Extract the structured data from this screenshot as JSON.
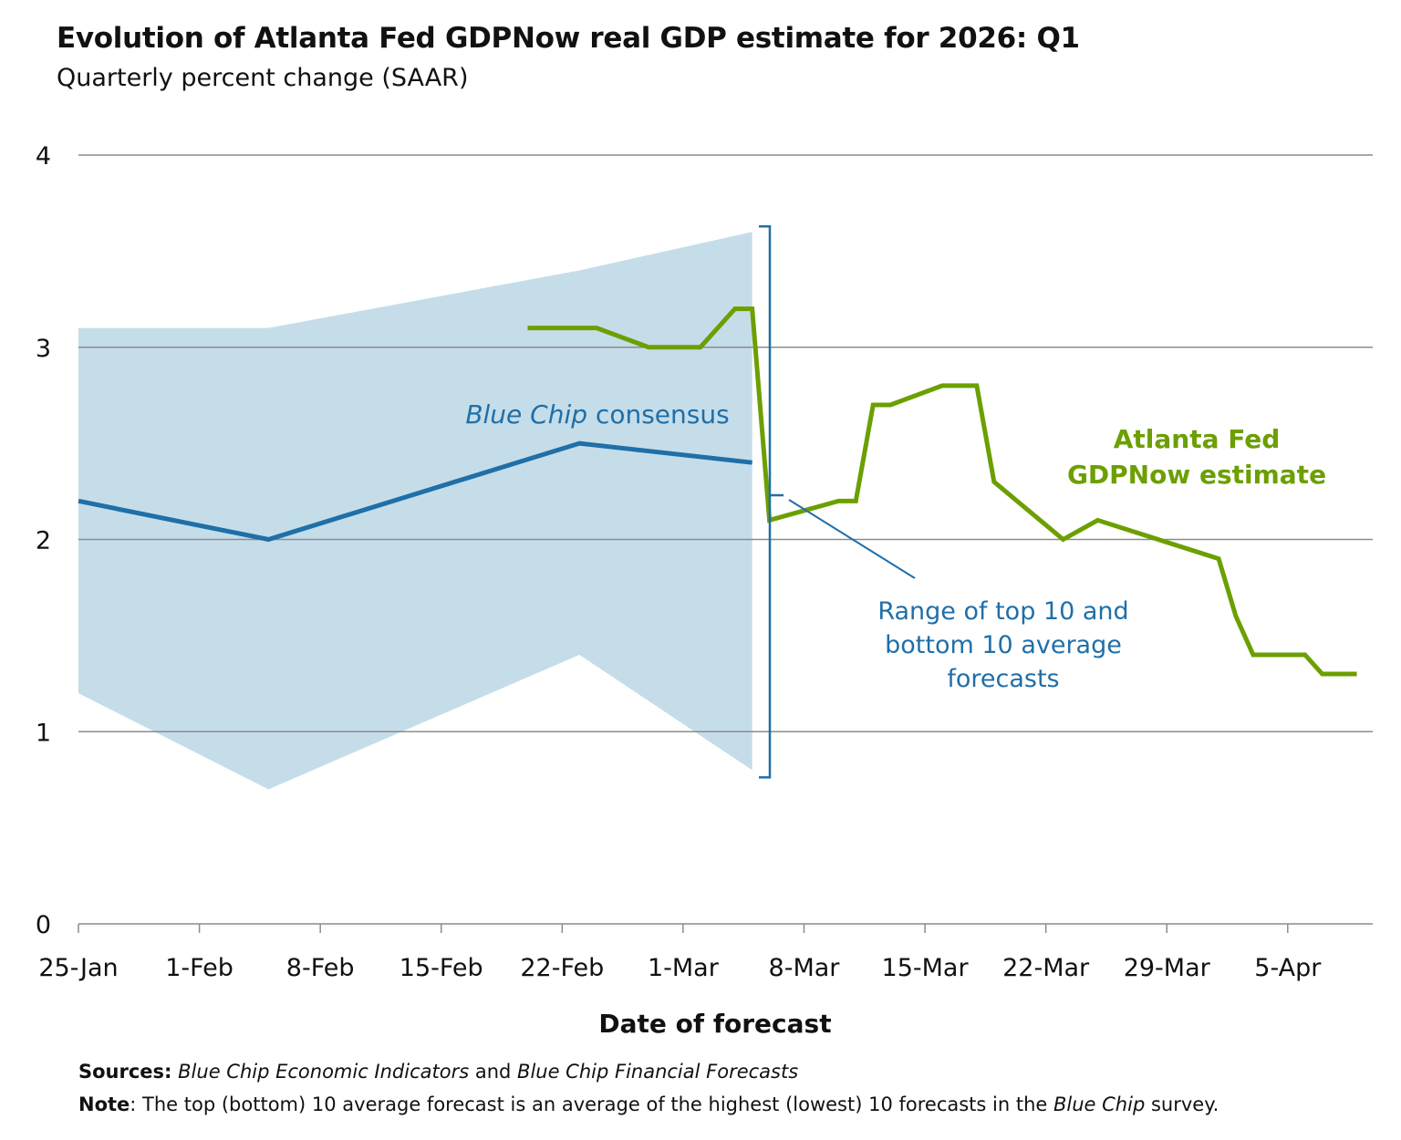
{
  "chart_data": {
    "type": "line",
    "title": "Evolution of Atlanta Fed GDPNow real GDP estimate for 2026: Q1",
    "subtitle": "Quarterly percent change (SAAR)",
    "xlabel": "Date of forecast",
    "ylabel": "",
    "x_unit": "days since 25-Jan",
    "xlim": [
      0,
      75
    ],
    "ylim": [
      0,
      4
    ],
    "y_ticks": [
      0,
      1,
      2,
      3,
      4
    ],
    "x_ticks": [
      {
        "x": 0,
        "label": "25-Jan"
      },
      {
        "x": 7,
        "label": "1-Feb"
      },
      {
        "x": 14,
        "label": "8-Feb"
      },
      {
        "x": 21,
        "label": "15-Feb"
      },
      {
        "x": 28,
        "label": "22-Feb"
      },
      {
        "x": 35,
        "label": "1-Mar"
      },
      {
        "x": 42,
        "label": "8-Mar"
      },
      {
        "x": 49,
        "label": "15-Mar"
      },
      {
        "x": 56,
        "label": "22-Mar"
      },
      {
        "x": 63,
        "label": "29-Mar"
      },
      {
        "x": 70,
        "label": "5-Apr"
      }
    ],
    "grid": true,
    "band": {
      "name": "Range of top 10 and bottom 10 average forecasts",
      "x": [
        0,
        11,
        29,
        39
      ],
      "upper": [
        3.1,
        3.1,
        3.4,
        3.6
      ],
      "lower": [
        1.2,
        0.7,
        1.4,
        0.8
      ],
      "color": "#c5dde9"
    },
    "series": [
      {
        "name": "Blue Chip consensus",
        "x": [
          0,
          11,
          29,
          39
        ],
        "y": [
          2.2,
          2.0,
          2.5,
          2.4
        ],
        "color": "#1f6fa8"
      },
      {
        "name": "Atlanta Fed GDPNow estimate",
        "x": [
          26,
          30,
          33,
          36,
          38,
          39,
          40,
          44,
          45,
          46,
          47,
          50,
          52,
          53,
          57,
          59,
          66,
          67,
          68,
          71,
          72,
          74
        ],
        "y": [
          3.1,
          3.1,
          3.0,
          3.0,
          3.2,
          3.2,
          2.1,
          2.2,
          2.2,
          2.7,
          2.7,
          2.8,
          2.8,
          2.3,
          2.0,
          2.1,
          1.9,
          1.6,
          1.4,
          1.4,
          1.3,
          1.3
        ],
        "color": "#6c9f00"
      }
    ],
    "annotations": {
      "consensus_italic": "Blue Chip",
      "consensus_rest": " consensus",
      "gdpnow_line1": "Atlanta Fed",
      "gdpnow_line2": "GDPNow estimate",
      "range_lines": [
        "Range of top 10 and",
        "bottom 10 average",
        "forecasts"
      ]
    }
  },
  "footer": {
    "sources_label": "Sources:",
    "sources_italic1": "Blue Chip Economic Indicators",
    "sources_and": " and ",
    "sources_italic2": "Blue Chip Financial Forecasts",
    "note_label": "Note",
    "note_text": ": The top (bottom) 10 average forecast is an average of the highest (lowest) 10 forecasts in the ",
    "note_italic": "Blue Chip",
    "note_end": " survey."
  }
}
